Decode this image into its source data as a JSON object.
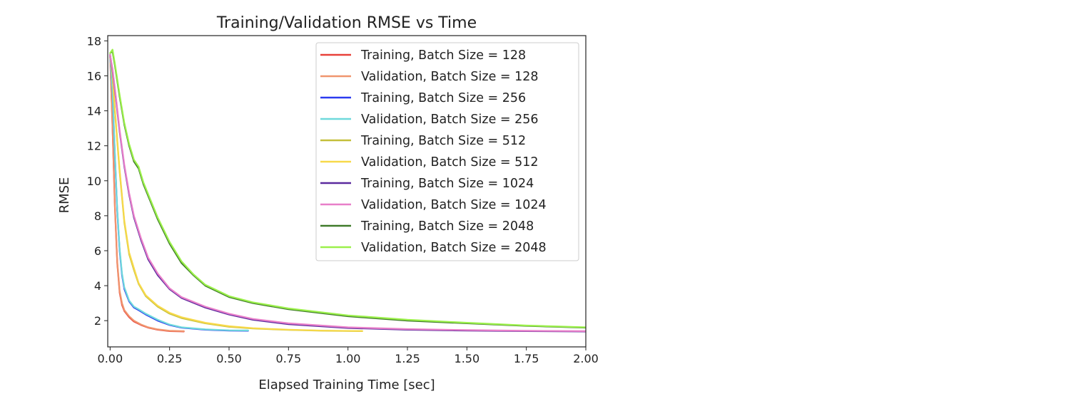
{
  "chart_data": {
    "type": "line",
    "title": "Training/Validation RMSE vs Time",
    "xlabel": "Elapsed Training Time [sec]",
    "ylabel": "RMSE",
    "xlim": [
      -0.01,
      2.0
    ],
    "ylim": [
      0.5,
      18.3
    ],
    "xticks": [
      0.0,
      0.25,
      0.5,
      0.75,
      1.0,
      1.25,
      1.5,
      1.75,
      2.0
    ],
    "xtick_labels": [
      "0.00",
      "0.25",
      "0.50",
      "0.75",
      "1.00",
      "1.25",
      "1.50",
      "1.75",
      "2.00"
    ],
    "yticks": [
      2,
      4,
      6,
      8,
      10,
      12,
      14,
      16,
      18
    ],
    "ytick_labels": [
      "2",
      "4",
      "6",
      "8",
      "10",
      "12",
      "14",
      "16",
      "18"
    ],
    "grid": false,
    "legend_position": "top-right",
    "series": [
      {
        "name": "Training, Batch Size = 128",
        "color": "#e8413a",
        "x": [
          0.0,
          0.01,
          0.02,
          0.03,
          0.04,
          0.05,
          0.06,
          0.08,
          0.1,
          0.13,
          0.16,
          0.2,
          0.25,
          0.31
        ],
        "y": [
          17.2,
          13.0,
          8.5,
          5.3,
          3.6,
          2.9,
          2.55,
          2.2,
          1.95,
          1.75,
          1.6,
          1.48,
          1.4,
          1.38
        ]
      },
      {
        "name": "Validation, Batch Size = 128",
        "color": "#f0956e",
        "x": [
          0.0,
          0.01,
          0.02,
          0.03,
          0.04,
          0.05,
          0.06,
          0.08,
          0.1,
          0.13,
          0.16,
          0.2,
          0.25,
          0.31
        ],
        "y": [
          17.2,
          13.1,
          8.6,
          5.4,
          3.7,
          3.0,
          2.6,
          2.25,
          2.0,
          1.78,
          1.62,
          1.5,
          1.42,
          1.4
        ]
      },
      {
        "name": "Training, Batch Size = 256",
        "color": "#2b3bf0",
        "x": [
          0.0,
          0.01,
          0.02,
          0.03,
          0.04,
          0.05,
          0.06,
          0.08,
          0.1,
          0.12,
          0.15,
          0.2,
          0.25,
          0.3,
          0.4,
          0.5,
          0.58
        ],
        "y": [
          17.2,
          15.0,
          11.5,
          8.3,
          6.0,
          4.6,
          3.8,
          3.1,
          2.75,
          2.6,
          2.35,
          2.0,
          1.75,
          1.6,
          1.48,
          1.43,
          1.42
        ]
      },
      {
        "name": "Validation, Batch Size = 256",
        "color": "#6fd9dc",
        "x": [
          0.0,
          0.01,
          0.02,
          0.03,
          0.04,
          0.05,
          0.06,
          0.08,
          0.1,
          0.12,
          0.15,
          0.2,
          0.25,
          0.3,
          0.4,
          0.5,
          0.58
        ],
        "y": [
          17.2,
          15.1,
          11.6,
          8.4,
          6.1,
          4.7,
          3.9,
          3.15,
          2.8,
          2.65,
          2.4,
          2.05,
          1.78,
          1.62,
          1.5,
          1.45,
          1.44
        ]
      },
      {
        "name": "Training, Batch Size = 512",
        "color": "#c4bf3a",
        "x": [
          0.0,
          0.01,
          0.02,
          0.04,
          0.06,
          0.08,
          0.1,
          0.12,
          0.15,
          0.2,
          0.25,
          0.3,
          0.4,
          0.5,
          0.6,
          0.75,
          0.9,
          1.06
        ],
        "y": [
          17.2,
          16.0,
          14.0,
          10.5,
          7.6,
          5.8,
          4.9,
          4.1,
          3.4,
          2.8,
          2.4,
          2.15,
          1.85,
          1.65,
          1.55,
          1.47,
          1.42,
          1.4
        ]
      },
      {
        "name": "Validation, Batch Size = 512",
        "color": "#f7d94a",
        "x": [
          0.0,
          0.01,
          0.02,
          0.04,
          0.06,
          0.08,
          0.1,
          0.12,
          0.15,
          0.2,
          0.25,
          0.3,
          0.4,
          0.5,
          0.6,
          0.75,
          0.9,
          1.06
        ],
        "y": [
          17.2,
          16.1,
          14.1,
          10.6,
          7.7,
          5.9,
          5.0,
          4.15,
          3.45,
          2.85,
          2.45,
          2.2,
          1.88,
          1.68,
          1.57,
          1.48,
          1.43,
          1.41
        ]
      },
      {
        "name": "Training, Batch Size = 1024",
        "color": "#5b2a9e",
        "x": [
          0.0,
          0.01,
          0.02,
          0.04,
          0.06,
          0.08,
          0.1,
          0.13,
          0.16,
          0.2,
          0.25,
          0.3,
          0.4,
          0.5,
          0.6,
          0.75,
          1.0,
          1.25,
          1.5,
          1.75,
          2.0
        ],
        "y": [
          17.2,
          16.3,
          15.2,
          12.8,
          10.8,
          9.2,
          7.9,
          6.6,
          5.5,
          4.6,
          3.8,
          3.3,
          2.75,
          2.35,
          2.05,
          1.8,
          1.58,
          1.48,
          1.43,
          1.4,
          1.38
        ]
      },
      {
        "name": "Validation, Batch Size = 1024",
        "color": "#e87fc9",
        "x": [
          0.0,
          0.01,
          0.02,
          0.04,
          0.06,
          0.08,
          0.1,
          0.13,
          0.16,
          0.2,
          0.25,
          0.3,
          0.4,
          0.5,
          0.6,
          0.75,
          1.0,
          1.25,
          1.5,
          1.75,
          2.0
        ],
        "y": [
          17.2,
          16.4,
          15.3,
          12.9,
          10.9,
          9.3,
          8.0,
          6.7,
          5.6,
          4.7,
          3.85,
          3.35,
          2.8,
          2.4,
          2.1,
          1.85,
          1.62,
          1.52,
          1.46,
          1.42,
          1.4
        ]
      },
      {
        "name": "Training, Batch Size = 2048",
        "color": "#3f7a2a",
        "x": [
          0.0,
          0.01,
          0.02,
          0.04,
          0.06,
          0.08,
          0.1,
          0.12,
          0.14,
          0.17,
          0.2,
          0.25,
          0.3,
          0.35,
          0.4,
          0.5,
          0.6,
          0.75,
          1.0,
          1.25,
          1.5,
          1.75,
          2.0
        ],
        "y": [
          17.3,
          17.4,
          16.6,
          14.8,
          13.2,
          12.0,
          11.1,
          10.7,
          9.8,
          8.8,
          7.8,
          6.4,
          5.3,
          4.6,
          4.0,
          3.35,
          3.0,
          2.65,
          2.25,
          2.0,
          1.85,
          1.7,
          1.6
        ]
      },
      {
        "name": "Validation, Batch Size = 2048",
        "color": "#9bf04a",
        "x": [
          0.0,
          0.01,
          0.02,
          0.04,
          0.06,
          0.08,
          0.1,
          0.12,
          0.14,
          0.17,
          0.2,
          0.25,
          0.3,
          0.35,
          0.4,
          0.5,
          0.6,
          0.75,
          1.0,
          1.25,
          1.5,
          1.75,
          2.0
        ],
        "y": [
          17.3,
          17.5,
          16.7,
          14.9,
          13.3,
          12.1,
          11.2,
          10.8,
          9.9,
          8.9,
          7.9,
          6.5,
          5.4,
          4.65,
          4.05,
          3.4,
          3.05,
          2.7,
          2.3,
          2.05,
          1.88,
          1.72,
          1.62
        ]
      }
    ]
  }
}
